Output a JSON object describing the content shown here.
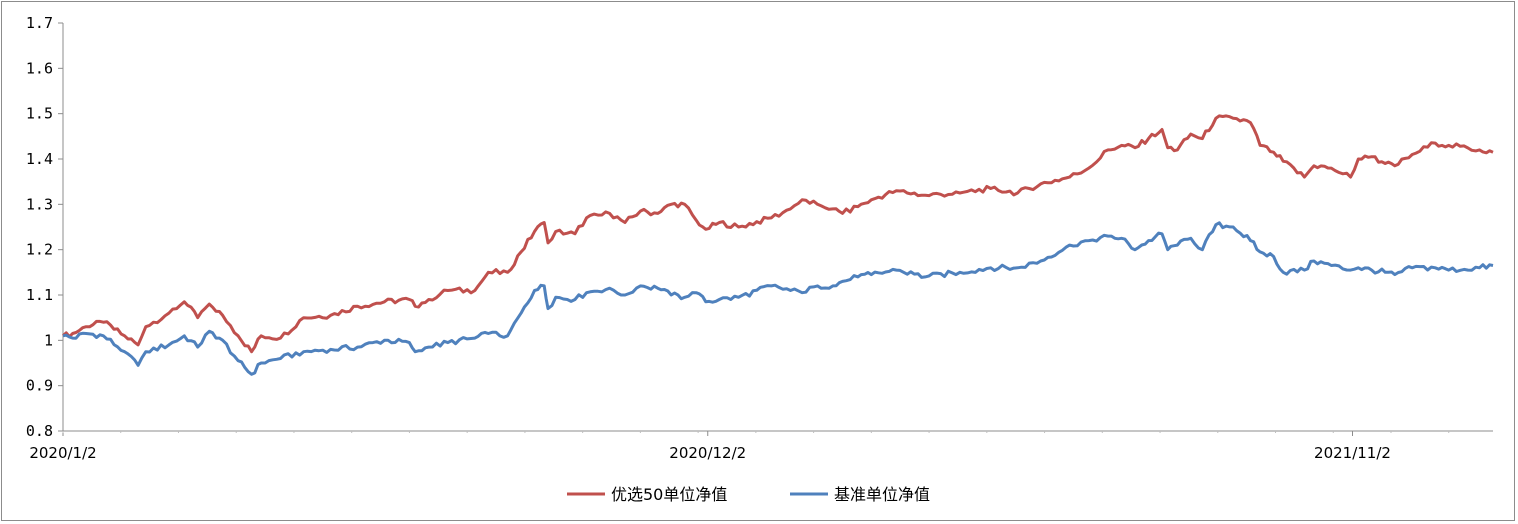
{
  "chart_data": {
    "type": "line",
    "title": "",
    "xlabel": "",
    "ylabel": "",
    "ylim": [
      0.8,
      1.7
    ],
    "yticks": [
      "0.8",
      "0.9",
      "1",
      "1.1",
      "1.2",
      "1.3",
      "1.4",
      "1.5",
      "1.6",
      "1.7"
    ],
    "xticks": [
      "2020/1/2",
      "2020/12/2",
      "2021/11/2"
    ],
    "x_range": [
      "2020-01-02",
      "2022-01-14"
    ],
    "grid": false,
    "legend": "bottom",
    "series": [
      {
        "name": "优选50单位净值",
        "color": "#C0504D",
        "points": [
          [
            "2020-01-02",
            1.01
          ],
          [
            "2020-01-07",
            1.015
          ],
          [
            "2020-01-14",
            1.03
          ],
          [
            "2020-01-23",
            1.04
          ],
          [
            "2020-02-03",
            1.01
          ],
          [
            "2020-02-10",
            0.99
          ],
          [
            "2020-02-14",
            1.03
          ],
          [
            "2020-02-26",
            1.06
          ],
          [
            "2020-03-05",
            1.085
          ],
          [
            "2020-03-12",
            1.05
          ],
          [
            "2020-03-18",
            1.08
          ],
          [
            "2020-03-25",
            1.055
          ],
          [
            "2020-04-02",
            1.01
          ],
          [
            "2020-04-09",
            0.975
          ],
          [
            "2020-04-14",
            1.01
          ],
          [
            "2020-04-24",
            1.005
          ],
          [
            "2020-05-06",
            1.05
          ],
          [
            "2020-05-20",
            1.055
          ],
          [
            "2020-06-03",
            1.075
          ],
          [
            "2020-06-17",
            1.085
          ],
          [
            "2020-06-30",
            1.09
          ],
          [
            "2020-07-03",
            1.075
          ],
          [
            "2020-07-10",
            1.09
          ],
          [
            "2020-07-20",
            1.11
          ],
          [
            "2020-08-03",
            1.11
          ],
          [
            "2020-08-10",
            1.15
          ],
          [
            "2020-08-20",
            1.15
          ],
          [
            "2020-08-27",
            1.195
          ],
          [
            "2020-09-03",
            1.24
          ],
          [
            "2020-09-08",
            1.26
          ],
          [
            "2020-09-10",
            1.215
          ],
          [
            "2020-09-14",
            1.24
          ],
          [
            "2020-09-24",
            1.235
          ],
          [
            "2020-09-30",
            1.27
          ],
          [
            "2020-10-12",
            1.28
          ],
          [
            "2020-10-20",
            1.26
          ],
          [
            "2020-10-28",
            1.285
          ],
          [
            "2020-11-06",
            1.28
          ],
          [
            "2020-11-13",
            1.3
          ],
          [
            "2020-11-20",
            1.3
          ],
          [
            "2020-11-26",
            1.265
          ],
          [
            "2020-12-01",
            1.245
          ],
          [
            "2020-12-08",
            1.26
          ],
          [
            "2020-12-18",
            1.25
          ],
          [
            "2021-01-04",
            1.27
          ],
          [
            "2021-01-14",
            1.29
          ],
          [
            "2021-01-20",
            1.31
          ],
          [
            "2021-01-28",
            1.3
          ],
          [
            "2021-02-05",
            1.29
          ],
          [
            "2021-02-10",
            1.28
          ],
          [
            "2021-02-18",
            1.295
          ],
          [
            "2021-02-25",
            1.31
          ],
          [
            "2021-03-10",
            1.33
          ],
          [
            "2021-03-25",
            1.32
          ],
          [
            "2021-04-12",
            1.325
          ],
          [
            "2021-04-28",
            1.335
          ],
          [
            "2021-05-12",
            1.325
          ],
          [
            "2021-05-24",
            1.345
          ],
          [
            "2021-06-08",
            1.36
          ],
          [
            "2021-06-18",
            1.38
          ],
          [
            "2021-06-28",
            1.42
          ],
          [
            "2021-07-05",
            1.43
          ],
          [
            "2021-07-12",
            1.425
          ],
          [
            "2021-07-19",
            1.445
          ],
          [
            "2021-07-26",
            1.465
          ],
          [
            "2021-07-29",
            1.425
          ],
          [
            "2021-08-03",
            1.42
          ],
          [
            "2021-08-10",
            1.455
          ],
          [
            "2021-08-16",
            1.445
          ],
          [
            "2021-08-23",
            1.49
          ],
          [
            "2021-09-01",
            1.49
          ],
          [
            "2021-09-10",
            1.48
          ],
          [
            "2021-09-15",
            1.43
          ],
          [
            "2021-09-22",
            1.415
          ],
          [
            "2021-09-27",
            1.395
          ],
          [
            "2021-10-08",
            1.36
          ],
          [
            "2021-10-13",
            1.385
          ],
          [
            "2021-10-22",
            1.38
          ],
          [
            "2021-11-01",
            1.36
          ],
          [
            "2021-11-05",
            1.4
          ],
          [
            "2021-11-12",
            1.405
          ],
          [
            "2021-11-19",
            1.39
          ],
          [
            "2021-11-24",
            1.385
          ],
          [
            "2021-12-03",
            1.41
          ],
          [
            "2021-12-15",
            1.435
          ],
          [
            "2021-12-22",
            1.43
          ],
          [
            "2022-01-07",
            1.42
          ],
          [
            "2022-01-14",
            1.415
          ]
        ]
      },
      {
        "name": "基准单位净值",
        "color": "#4F81BD",
        "points": [
          [
            "2020-01-02",
            1.01
          ],
          [
            "2020-01-07",
            1.005
          ],
          [
            "2020-01-14",
            1.015
          ],
          [
            "2020-01-23",
            1.01
          ],
          [
            "2020-02-03",
            0.975
          ],
          [
            "2020-02-10",
            0.945
          ],
          [
            "2020-02-14",
            0.975
          ],
          [
            "2020-02-26",
            0.99
          ],
          [
            "2020-03-05",
            1.01
          ],
          [
            "2020-03-12",
            0.985
          ],
          [
            "2020-03-18",
            1.02
          ],
          [
            "2020-03-25",
            1.0
          ],
          [
            "2020-04-02",
            0.955
          ],
          [
            "2020-04-09",
            0.925
          ],
          [
            "2020-04-14",
            0.95
          ],
          [
            "2020-04-24",
            0.96
          ],
          [
            "2020-05-06",
            0.975
          ],
          [
            "2020-05-20",
            0.98
          ],
          [
            "2020-06-03",
            0.985
          ],
          [
            "2020-06-17",
            1.0
          ],
          [
            "2020-06-30",
            0.995
          ],
          [
            "2020-07-03",
            0.975
          ],
          [
            "2020-07-10",
            0.985
          ],
          [
            "2020-07-20",
            0.995
          ],
          [
            "2020-08-03",
            1.005
          ],
          [
            "2020-08-10",
            1.015
          ],
          [
            "2020-08-20",
            1.01
          ],
          [
            "2020-08-27",
            1.06
          ],
          [
            "2020-09-03",
            1.11
          ],
          [
            "2020-09-08",
            1.12
          ],
          [
            "2020-09-10",
            1.07
          ],
          [
            "2020-09-14",
            1.095
          ],
          [
            "2020-09-24",
            1.09
          ],
          [
            "2020-09-30",
            1.105
          ],
          [
            "2020-10-12",
            1.115
          ],
          [
            "2020-10-20",
            1.1
          ],
          [
            "2020-10-28",
            1.12
          ],
          [
            "2020-11-06",
            1.115
          ],
          [
            "2020-11-13",
            1.1
          ],
          [
            "2020-11-20",
            1.095
          ],
          [
            "2020-11-26",
            1.105
          ],
          [
            "2020-12-01",
            1.085
          ],
          [
            "2020-12-08",
            1.09
          ],
          [
            "2020-12-18",
            1.095
          ],
          [
            "2021-01-04",
            1.12
          ],
          [
            "2021-01-14",
            1.11
          ],
          [
            "2021-01-20",
            1.105
          ],
          [
            "2021-01-28",
            1.12
          ],
          [
            "2021-02-05",
            1.12
          ],
          [
            "2021-02-10",
            1.13
          ],
          [
            "2021-02-18",
            1.14
          ],
          [
            "2021-02-25",
            1.145
          ],
          [
            "2021-03-10",
            1.155
          ],
          [
            "2021-03-25",
            1.14
          ],
          [
            "2021-04-12",
            1.15
          ],
          [
            "2021-04-28",
            1.16
          ],
          [
            "2021-05-12",
            1.16
          ],
          [
            "2021-05-24",
            1.175
          ],
          [
            "2021-06-08",
            1.21
          ],
          [
            "2021-06-18",
            1.22
          ],
          [
            "2021-06-28",
            1.23
          ],
          [
            "2021-07-05",
            1.225
          ],
          [
            "2021-07-12",
            1.2
          ],
          [
            "2021-07-19",
            1.22
          ],
          [
            "2021-07-26",
            1.235
          ],
          [
            "2021-07-29",
            1.2
          ],
          [
            "2021-08-03",
            1.21
          ],
          [
            "2021-08-10",
            1.225
          ],
          [
            "2021-08-16",
            1.2
          ],
          [
            "2021-08-23",
            1.255
          ],
          [
            "2021-09-01",
            1.25
          ],
          [
            "2021-09-10",
            1.22
          ],
          [
            "2021-09-15",
            1.195
          ],
          [
            "2021-09-22",
            1.185
          ],
          [
            "2021-09-27",
            1.15
          ],
          [
            "2021-10-08",
            1.155
          ],
          [
            "2021-10-13",
            1.175
          ],
          [
            "2021-10-22",
            1.165
          ],
          [
            "2021-11-01",
            1.155
          ],
          [
            "2021-11-05",
            1.16
          ],
          [
            "2021-11-12",
            1.155
          ],
          [
            "2021-11-19",
            1.15
          ],
          [
            "2021-11-24",
            1.145
          ],
          [
            "2021-12-03",
            1.16
          ],
          [
            "2021-12-15",
            1.16
          ],
          [
            "2021-12-22",
            1.155
          ],
          [
            "2022-01-07",
            1.16
          ],
          [
            "2022-01-14",
            1.165
          ]
        ]
      }
    ]
  }
}
